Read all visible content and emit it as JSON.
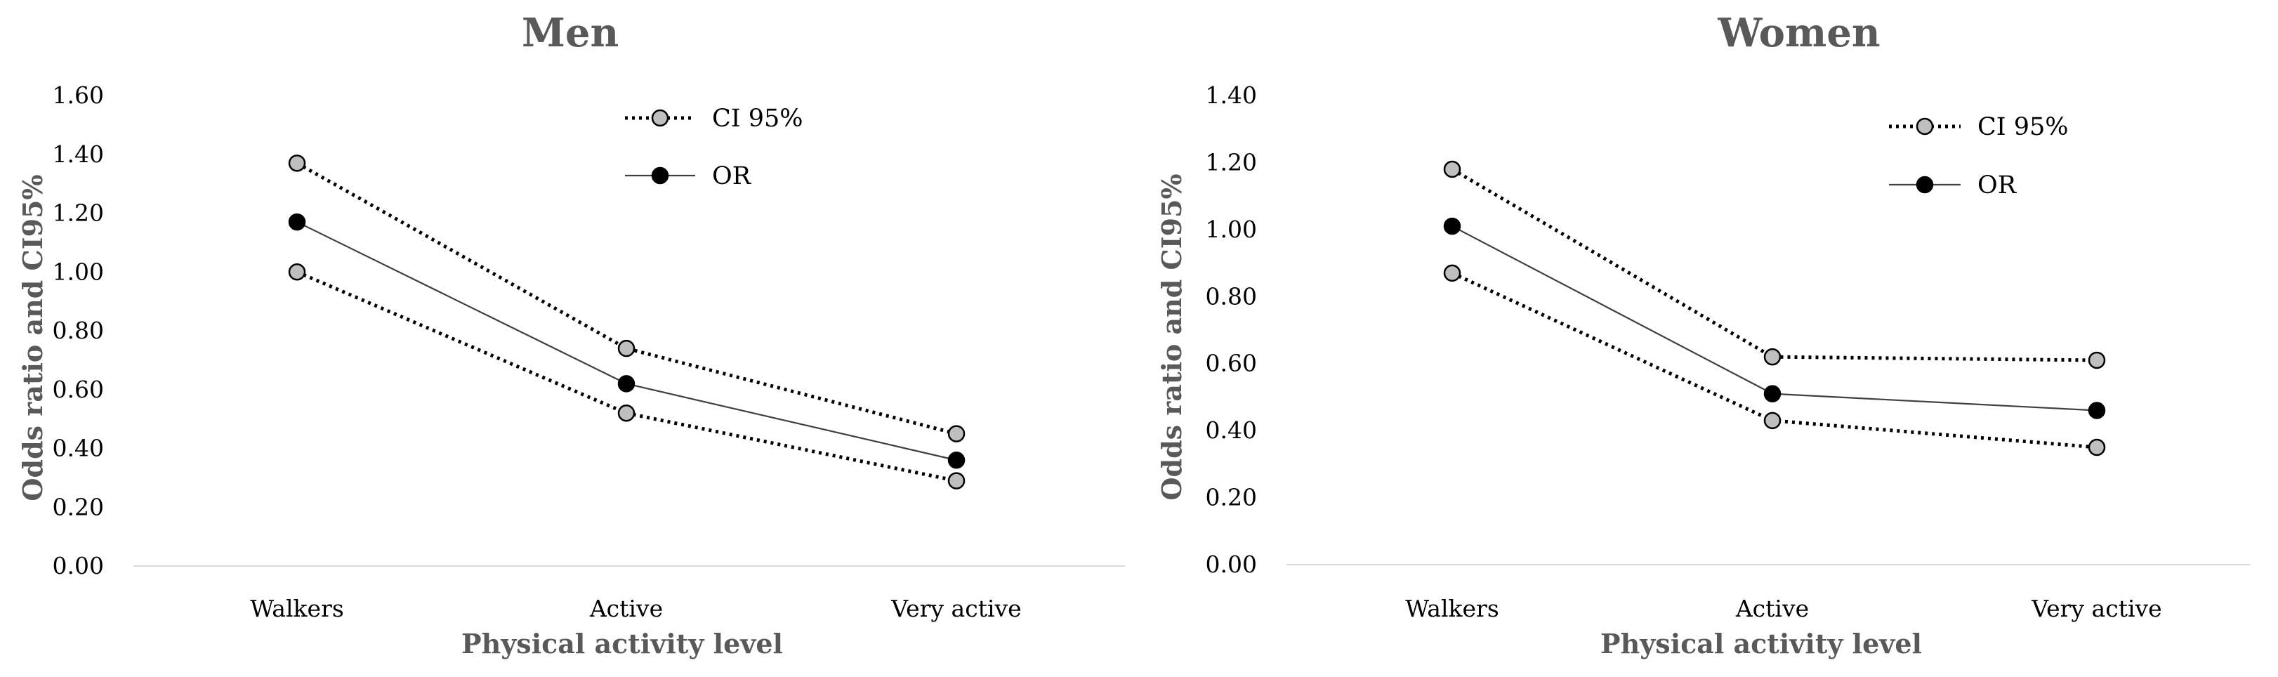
{
  "chart_data": [
    {
      "type": "line",
      "title": "Men",
      "xlabel": "Physical activity level",
      "ylabel": "Odds ratio and CI95%",
      "categories": [
        "Walkers",
        "Active",
        "Very active"
      ],
      "ylim": [
        0,
        1.6
      ],
      "yticks": [
        "0.00",
        "0.20",
        "0.40",
        "0.60",
        "0.80",
        "1.00",
        "1.20",
        "1.40",
        "1.60"
      ],
      "legend_position": "top-center",
      "legend": [
        "CI 95%",
        "OR"
      ],
      "series": [
        {
          "name": "CI 95%",
          "role": "upper",
          "values": [
            1.37,
            0.74,
            0.45
          ]
        },
        {
          "name": "OR",
          "role": "or",
          "values": [
            1.17,
            0.62,
            0.36
          ]
        },
        {
          "name": "CI 95%",
          "role": "lower",
          "values": [
            1.0,
            0.52,
            0.29
          ]
        }
      ]
    },
    {
      "type": "line",
      "title": "Women",
      "xlabel": "Physical activity level",
      "ylabel": "Odds ratio and CI95%",
      "categories": [
        "Walkers",
        "Active",
        "Very active"
      ],
      "ylim": [
        0,
        1.4
      ],
      "yticks": [
        "0.00",
        "0.20",
        "0.40",
        "0.60",
        "0.80",
        "1.00",
        "1.20",
        "1.40"
      ],
      "legend_position": "top-right",
      "legend": [
        "CI 95%",
        "OR"
      ],
      "series": [
        {
          "name": "CI 95%",
          "role": "upper",
          "values": [
            1.18,
            0.62,
            0.61
          ]
        },
        {
          "name": "OR",
          "role": "or",
          "values": [
            1.01,
            0.51,
            0.46
          ]
        },
        {
          "name": "CI 95%",
          "role": "lower",
          "values": [
            0.87,
            0.43,
            0.35
          ]
        }
      ]
    }
  ],
  "colors": {
    "ci_marker_fill": "#bfbfbf",
    "or_marker_fill": "#000000",
    "line": "#000000",
    "or_line": "#404040",
    "axis": "#d9d9d9",
    "title": "#595959"
  }
}
